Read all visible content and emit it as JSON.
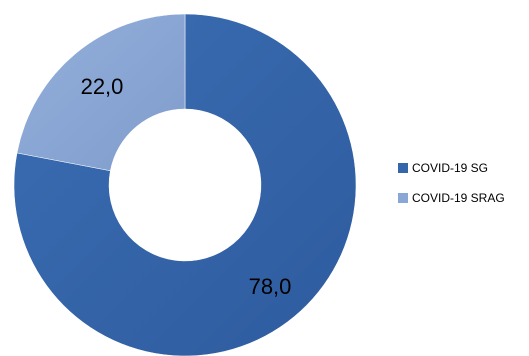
{
  "chart_data": {
    "type": "pie",
    "variant": "donut",
    "title": "",
    "series": [
      {
        "name": "COVID-19 SG",
        "value": 78.0,
        "label": "78,0",
        "color": "#3565AA"
      },
      {
        "name": "COVID-19 SRAG",
        "value": 22.0,
        "label": "22,0",
        "color": "#8AA6D4"
      }
    ],
    "legend_position": "right",
    "start": "top, clockwise"
  }
}
